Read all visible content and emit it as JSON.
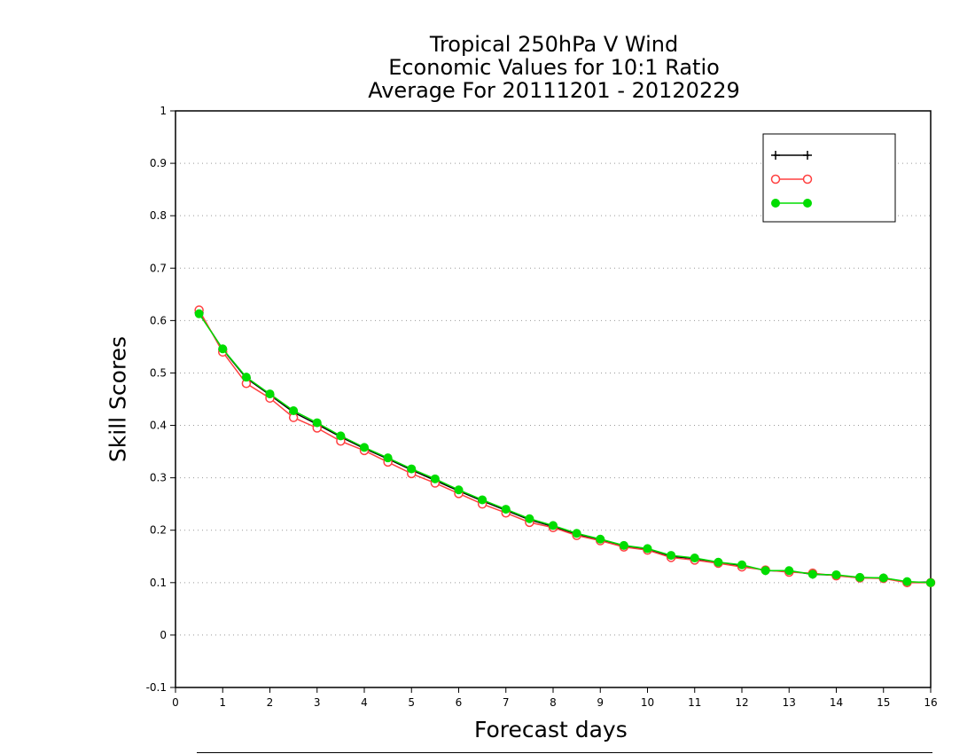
{
  "chart_data": {
    "type": "line",
    "title_lines": [
      "Tropical 250hPa V Wind",
      "Economic Values for 10:1 Ratio",
      "Average For 20111201 - 20120229"
    ],
    "xlabel": "Forecast days",
    "ylabel": "Skill Scores",
    "xlim": [
      0,
      16
    ],
    "ylim": [
      -0.1,
      1
    ],
    "x_ticks": [
      "0",
      "1",
      "2",
      "3",
      "4",
      "5",
      "6",
      "7",
      "8",
      "9",
      "10",
      "11",
      "12",
      "13",
      "14",
      "15",
      "16"
    ],
    "y_ticks": [
      "-0.1",
      "0",
      "0.1",
      "0.2",
      "0.3",
      "0.4",
      "0.5",
      "0.6",
      "0.7",
      "0.8",
      "0.9",
      "1"
    ],
    "grid": "horizontal dotted",
    "legend_position": "top-right",
    "x": [
      0.5,
      1,
      1.5,
      2,
      2.5,
      3,
      3.5,
      4,
      4.5,
      5,
      5.5,
      6,
      6.5,
      7,
      7.5,
      8,
      8.5,
      9,
      9.5,
      10,
      10.5,
      11,
      11.5,
      12,
      12.5,
      13,
      13.5,
      14,
      14.5,
      15,
      15.5,
      16
    ],
    "series": [
      {
        "name": "",
        "color": "#000000",
        "marker": "plus",
        "values": [
          0.615,
          0.545,
          0.49,
          0.458,
          0.425,
          0.402,
          0.378,
          0.356,
          0.336,
          0.315,
          0.295,
          0.275,
          0.256,
          0.238,
          0.22,
          0.207,
          0.192,
          0.182,
          0.17,
          0.163,
          0.15,
          0.146,
          0.138,
          0.133,
          0.123,
          0.122,
          0.116,
          0.114,
          0.109,
          0.109,
          0.101,
          0.101
        ]
      },
      {
        "name": "",
        "color": "#ff4040",
        "marker": "open-circle",
        "values": [
          0.62,
          0.54,
          0.48,
          0.452,
          0.415,
          0.395,
          0.37,
          0.352,
          0.33,
          0.308,
          0.29,
          0.27,
          0.25,
          0.233,
          0.215,
          0.205,
          0.19,
          0.18,
          0.168,
          0.162,
          0.148,
          0.143,
          0.137,
          0.13,
          0.124,
          0.12,
          0.118,
          0.113,
          0.109,
          0.108,
          0.1,
          0.1
        ]
      },
      {
        "name": "",
        "color": "#00dd00",
        "marker": "filled-circle",
        "values": [
          0.613,
          0.546,
          0.492,
          0.46,
          0.428,
          0.405,
          0.38,
          0.358,
          0.338,
          0.317,
          0.298,
          0.277,
          0.258,
          0.24,
          0.222,
          0.209,
          0.194,
          0.183,
          0.171,
          0.165,
          0.152,
          0.147,
          0.139,
          0.134,
          0.123,
          0.123,
          0.116,
          0.115,
          0.11,
          0.109,
          0.102,
          0.1
        ]
      }
    ]
  }
}
